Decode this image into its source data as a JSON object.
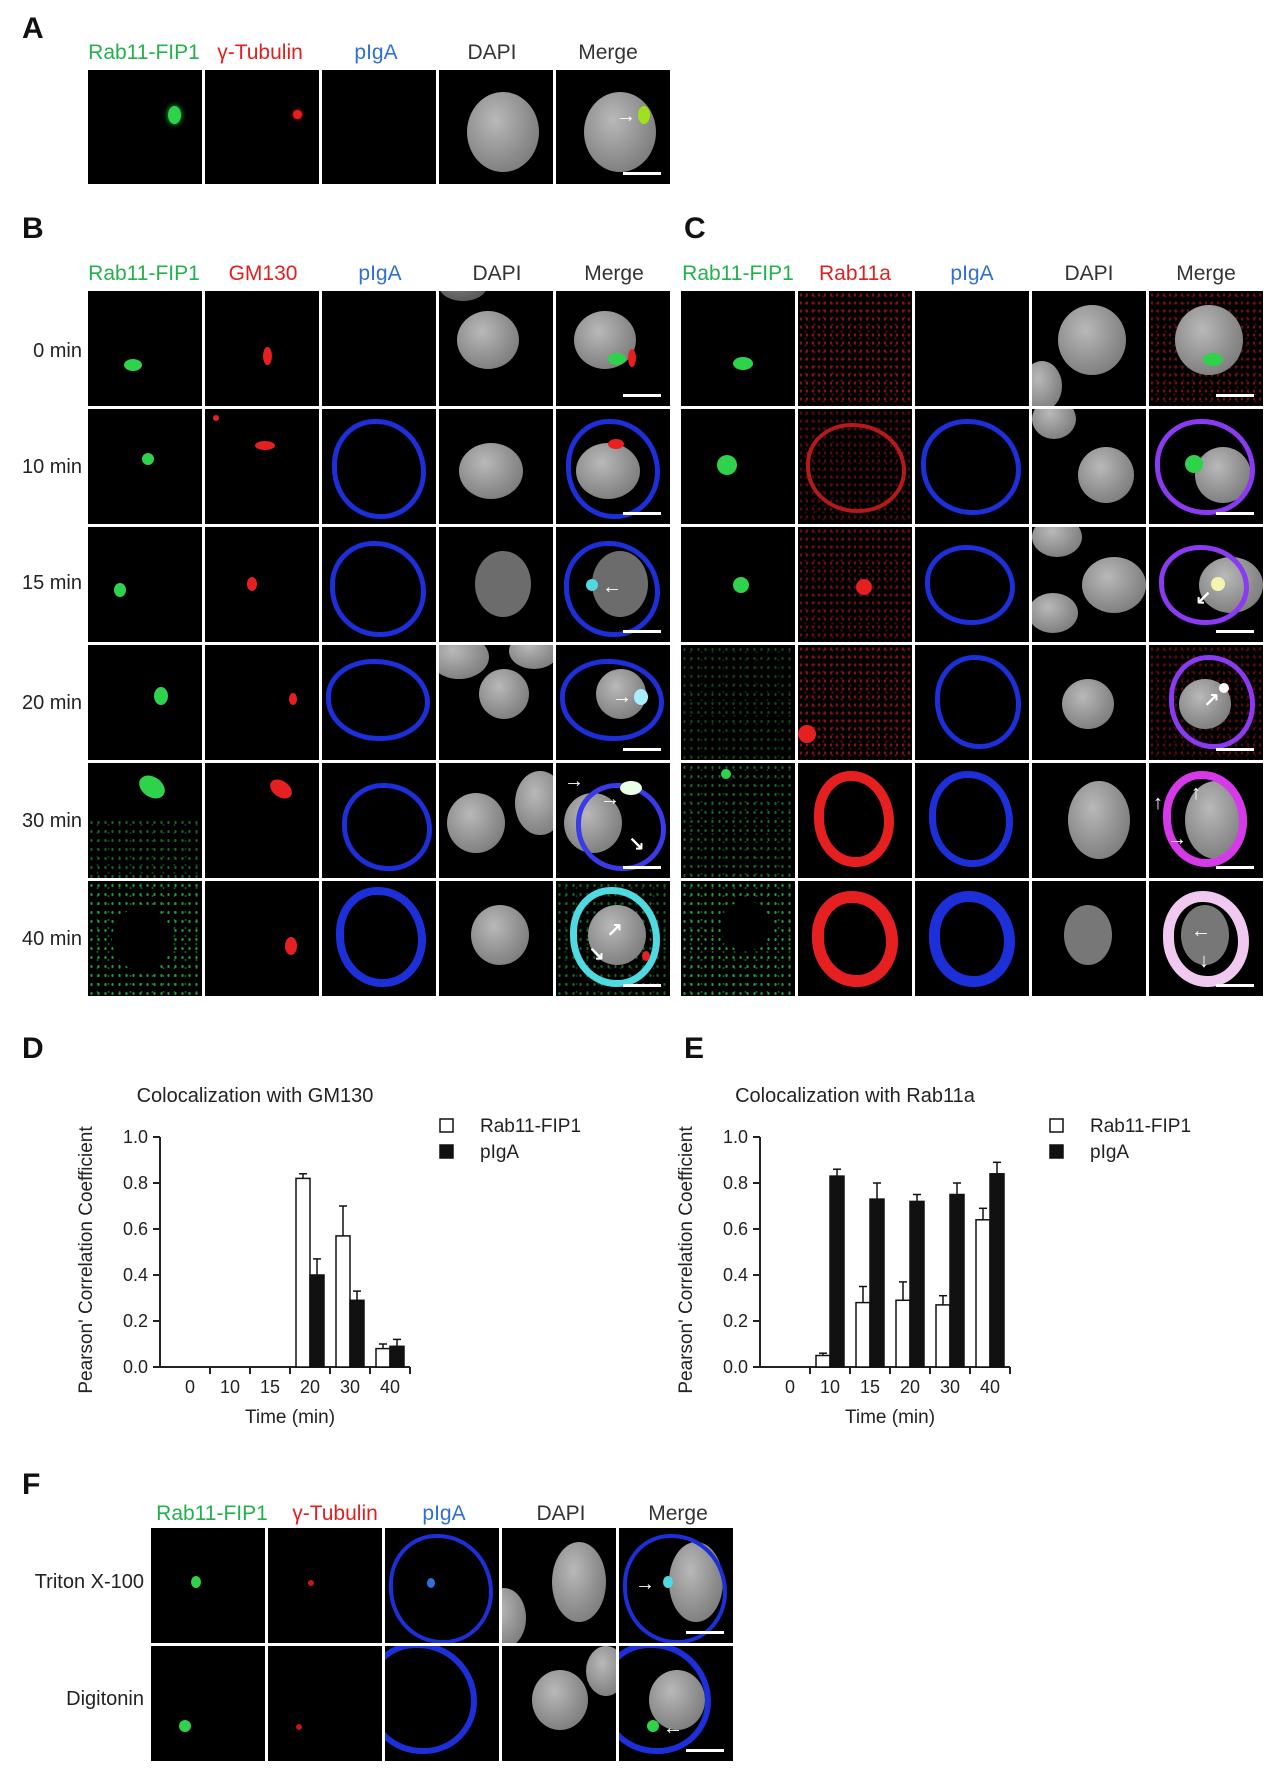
{
  "panels": {
    "A": {
      "label": "A",
      "headers": [
        {
          "text": "Rab11-FIP1",
          "color": "green"
        },
        {
          "text": "γ-Tubulin",
          "color": "red"
        },
        {
          "text": "pIgA",
          "color": "blue"
        },
        {
          "text": "DAPI",
          "color": "black"
        },
        {
          "text": "Merge",
          "color": "black"
        }
      ]
    },
    "B": {
      "label": "B",
      "headers": [
        {
          "text": "Rab11-FIP1",
          "color": "green"
        },
        {
          "text": "GM130",
          "color": "red"
        },
        {
          "text": "pIgA",
          "color": "blue"
        },
        {
          "text": "DAPI",
          "color": "black"
        },
        {
          "text": "Merge",
          "color": "black"
        }
      ],
      "rows": [
        "0 min",
        "10 min",
        "15 min",
        "20 min",
        "30 min",
        "40 min"
      ]
    },
    "C": {
      "label": "C",
      "headers": [
        {
          "text": "Rab11-FIP1",
          "color": "green"
        },
        {
          "text": "Rab11a",
          "color": "red"
        },
        {
          "text": "pIgA",
          "color": "blue"
        },
        {
          "text": "DAPI",
          "color": "black"
        },
        {
          "text": "Merge",
          "color": "black"
        }
      ]
    },
    "D": {
      "label": "D"
    },
    "E": {
      "label": "E"
    },
    "F": {
      "label": "F",
      "headers": [
        {
          "text": "Rab11-FIP1",
          "color": "green"
        },
        {
          "text": "γ-Tubulin",
          "color": "red"
        },
        {
          "text": "pIgA",
          "color": "blue"
        },
        {
          "text": "DAPI",
          "color": "black"
        },
        {
          "text": "Merge",
          "color": "black"
        }
      ],
      "rows": [
        "Triton X-100",
        "Digitonin"
      ]
    }
  },
  "colors": {
    "green": "#22b14c",
    "red": "#e02020",
    "blue": "#2f6fd6",
    "black": "#333333"
  },
  "chart_data": [
    {
      "type": "bar",
      "title": "Colocalization with GM130",
      "xlabel": "Time (min)",
      "ylabel": "Pearson' Correlation Coefficient",
      "categories": [
        "0",
        "10",
        "15",
        "20",
        "30",
        "40"
      ],
      "ylim": [
        0,
        1.0
      ],
      "yticks": [
        "0.0",
        "0.2",
        "0.4",
        "0.6",
        "0.8",
        "1.0"
      ],
      "series": [
        {
          "name": "Rab11-FIP1",
          "fill": "open",
          "values": [
            0,
            0,
            0,
            0.82,
            0.57,
            0.08
          ],
          "errors": [
            0,
            0,
            0,
            0.02,
            0.13,
            0.02
          ]
        },
        {
          "name": "pIgA",
          "fill": "solid",
          "values": [
            0,
            0,
            0,
            0.4,
            0.29,
            0.09
          ],
          "errors": [
            0,
            0,
            0,
            0.07,
            0.04,
            0.03
          ]
        }
      ]
    },
    {
      "type": "bar",
      "title": "Colocalization with Rab11a",
      "xlabel": "Time (min)",
      "ylabel": "Pearson' Correlation Coefficient",
      "categories": [
        "0",
        "10",
        "15",
        "20",
        "30",
        "40"
      ],
      "ylim": [
        0,
        1.0
      ],
      "yticks": [
        "0.0",
        "0.2",
        "0.4",
        "0.6",
        "0.8",
        "1.0"
      ],
      "series": [
        {
          "name": "Rab11-FIP1",
          "fill": "open",
          "values": [
            0,
            0.05,
            0.28,
            0.29,
            0.27,
            0.64
          ],
          "errors": [
            0,
            0.01,
            0.07,
            0.08,
            0.04,
            0.05
          ]
        },
        {
          "name": "pIgA",
          "fill": "solid",
          "values": [
            0,
            0.83,
            0.73,
            0.72,
            0.75,
            0.84
          ],
          "errors": [
            0,
            0.03,
            0.07,
            0.03,
            0.05,
            0.05
          ]
        }
      ]
    }
  ]
}
